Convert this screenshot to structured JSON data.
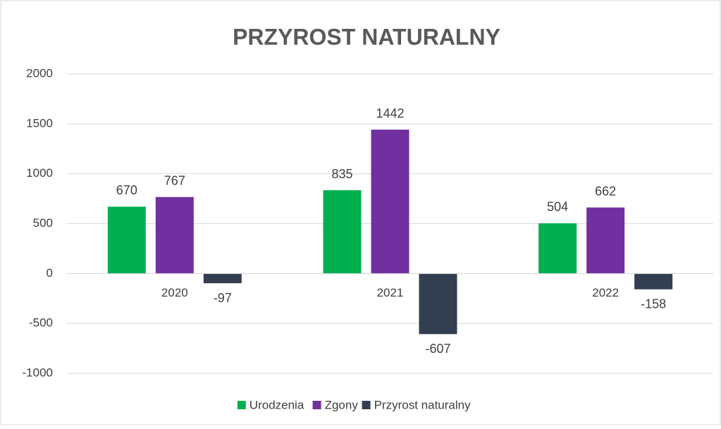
{
  "chart_data": {
    "type": "bar",
    "title": "PRZYROST NATURALNY",
    "categories": [
      "2020",
      "2021",
      "2022"
    ],
    "series": [
      {
        "name": "Urodzenia",
        "color": "#00b050",
        "values": [
          670,
          835,
          504
        ]
      },
      {
        "name": "Zgony",
        "color": "#7030a0",
        "values": [
          767,
          1442,
          662
        ]
      },
      {
        "name": "Przyrost naturalny",
        "color": "#333f50",
        "values": [
          -97,
          -607,
          -158
        ]
      }
    ],
    "ylim": [
      -1000,
      2000
    ],
    "yticks": [
      -1000,
      -500,
      0,
      500,
      1000,
      1500,
      2000
    ],
    "grid": true,
    "legend": "bottom"
  }
}
